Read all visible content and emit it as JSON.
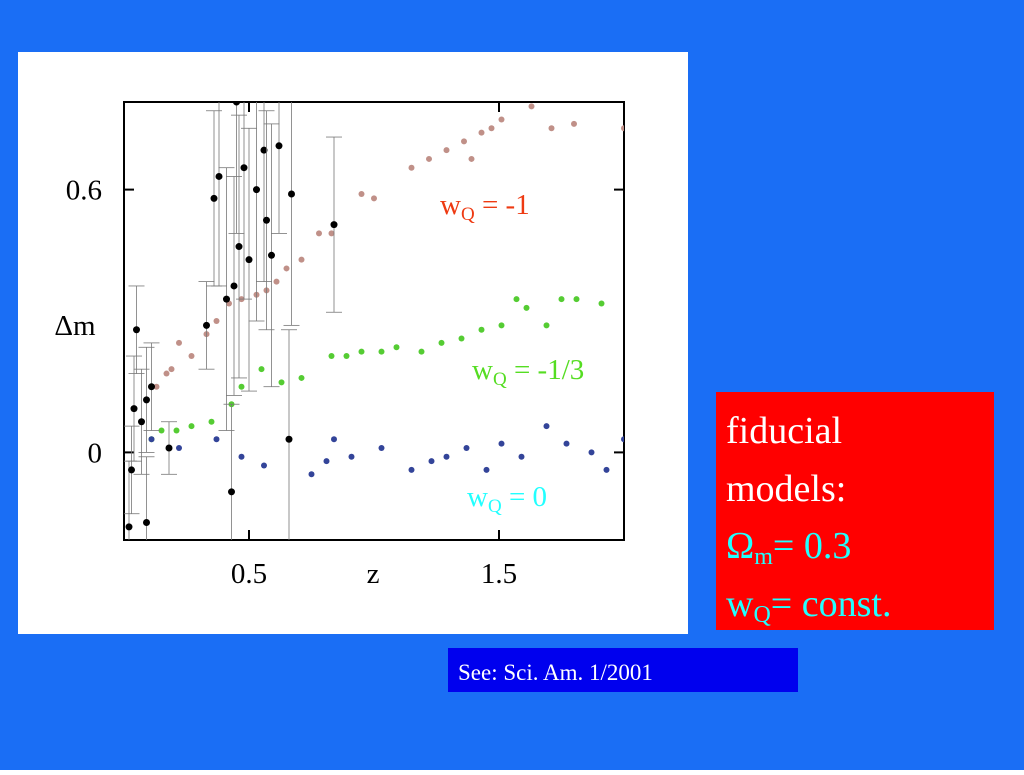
{
  "chart_data": {
    "type": "scatter",
    "xlabel": "z",
    "ylabel": "Δm",
    "xlim": [
      0,
      2
    ],
    "ylim": [
      -0.2,
      0.8
    ],
    "xticks": [
      0.5,
      1.5
    ],
    "yticks": [
      0,
      0.6
    ],
    "series": [
      {
        "color": "#c09088",
        "label": {
          "base": "w",
          "sub": "Q",
          "text": " = -1",
          "color": "#ee3a12"
        },
        "x": [
          0.13,
          0.17,
          0.19,
          0.22,
          0.27,
          0.33,
          0.37,
          0.42,
          0.47,
          0.53,
          0.57,
          0.61,
          0.65,
          0.71,
          0.78,
          0.83,
          0.95,
          1.0,
          1.15,
          1.22,
          1.29,
          1.36,
          1.39,
          1.43,
          1.47,
          1.51,
          1.63,
          1.71,
          1.8,
          2.0
        ],
        "values": [
          0.15,
          0.18,
          0.19,
          0.25,
          0.22,
          0.27,
          0.3,
          0.34,
          0.35,
          0.36,
          0.37,
          0.39,
          0.42,
          0.44,
          0.5,
          0.5,
          0.59,
          0.58,
          0.65,
          0.67,
          0.69,
          0.71,
          0.67,
          0.73,
          0.74,
          0.76,
          0.79,
          0.74,
          0.75,
          0.74
        ]
      },
      {
        "color": "#55cc33",
        "label": {
          "base": "w",
          "sub": "Q",
          "text": " = -1/3",
          "color": "#55dd22"
        },
        "x": [
          0.11,
          0.15,
          0.21,
          0.27,
          0.35,
          0.43,
          0.47,
          0.55,
          0.63,
          0.71,
          0.83,
          0.89,
          0.95,
          1.03,
          1.09,
          1.19,
          1.27,
          1.35,
          1.43,
          1.51,
          1.57,
          1.61,
          1.69,
          1.75,
          1.81,
          1.91
        ],
        "values": [
          0.03,
          0.05,
          0.05,
          0.06,
          0.07,
          0.11,
          0.15,
          0.19,
          0.16,
          0.17,
          0.22,
          0.22,
          0.23,
          0.23,
          0.24,
          0.23,
          0.25,
          0.26,
          0.28,
          0.29,
          0.35,
          0.33,
          0.29,
          0.35,
          0.35,
          0.34
        ]
      },
      {
        "color": "#334499",
        "label": {
          "base": "w",
          "sub": "Q",
          "text": " = 0",
          "color": "#22ffff"
        },
        "x": [
          0.11,
          0.22,
          0.37,
          0.47,
          0.56,
          0.75,
          0.81,
          0.84,
          0.91,
          1.03,
          1.15,
          1.23,
          1.29,
          1.37,
          1.45,
          1.51,
          1.59,
          1.69,
          1.77,
          1.87,
          1.93,
          2.0
        ],
        "values": [
          0.03,
          0.01,
          0.03,
          -0.01,
          -0.03,
          -0.05,
          -0.02,
          0.03,
          -0.01,
          0.01,
          -0.04,
          -0.02,
          -0.01,
          0.01,
          -0.04,
          0.02,
          -0.01,
          0.06,
          0.02,
          0.0,
          -0.04,
          0.03
        ]
      },
      {
        "color": "#000000",
        "x": [
          0.02,
          0.03,
          0.04,
          0.05,
          0.07,
          0.09,
          0.11,
          0.09,
          0.18,
          0.33,
          0.36,
          0.38,
          0.41,
          0.43,
          0.44,
          0.46,
          0.48,
          0.5,
          0.53,
          0.56,
          0.57,
          0.59,
          0.62,
          0.66,
          0.67,
          0.84,
          0.45
        ],
        "values": [
          -0.17,
          -0.04,
          0.1,
          0.28,
          0.07,
          0.12,
          0.15,
          -0.16,
          0.01,
          0.29,
          0.58,
          0.63,
          0.35,
          -0.09,
          0.38,
          0.47,
          0.65,
          0.44,
          0.6,
          0.69,
          0.53,
          0.45,
          0.7,
          0.03,
          0.59,
          0.52,
          0.8
        ],
        "errors": [
          0.15,
          0.1,
          0.12,
          0.1,
          0.12,
          0.12,
          0.1,
          0.15,
          0.06,
          0.1,
          0.2,
          0.25,
          0.3,
          0.2,
          0.25,
          0.3,
          0.3,
          0.3,
          0.3,
          0.3,
          0.25,
          0.3,
          0.2,
          0.25,
          0.3,
          0.2,
          0.3
        ]
      }
    ]
  },
  "box": {
    "lines": [
      "fiducial",
      "models:"
    ],
    "params": [
      {
        "base": "Ω",
        "sub": "m",
        "text": "= 0.3"
      },
      {
        "base": "w",
        "sub": "Q",
        "text": "= const."
      }
    ]
  },
  "citation": "See: Sci. Am. 1/2001"
}
